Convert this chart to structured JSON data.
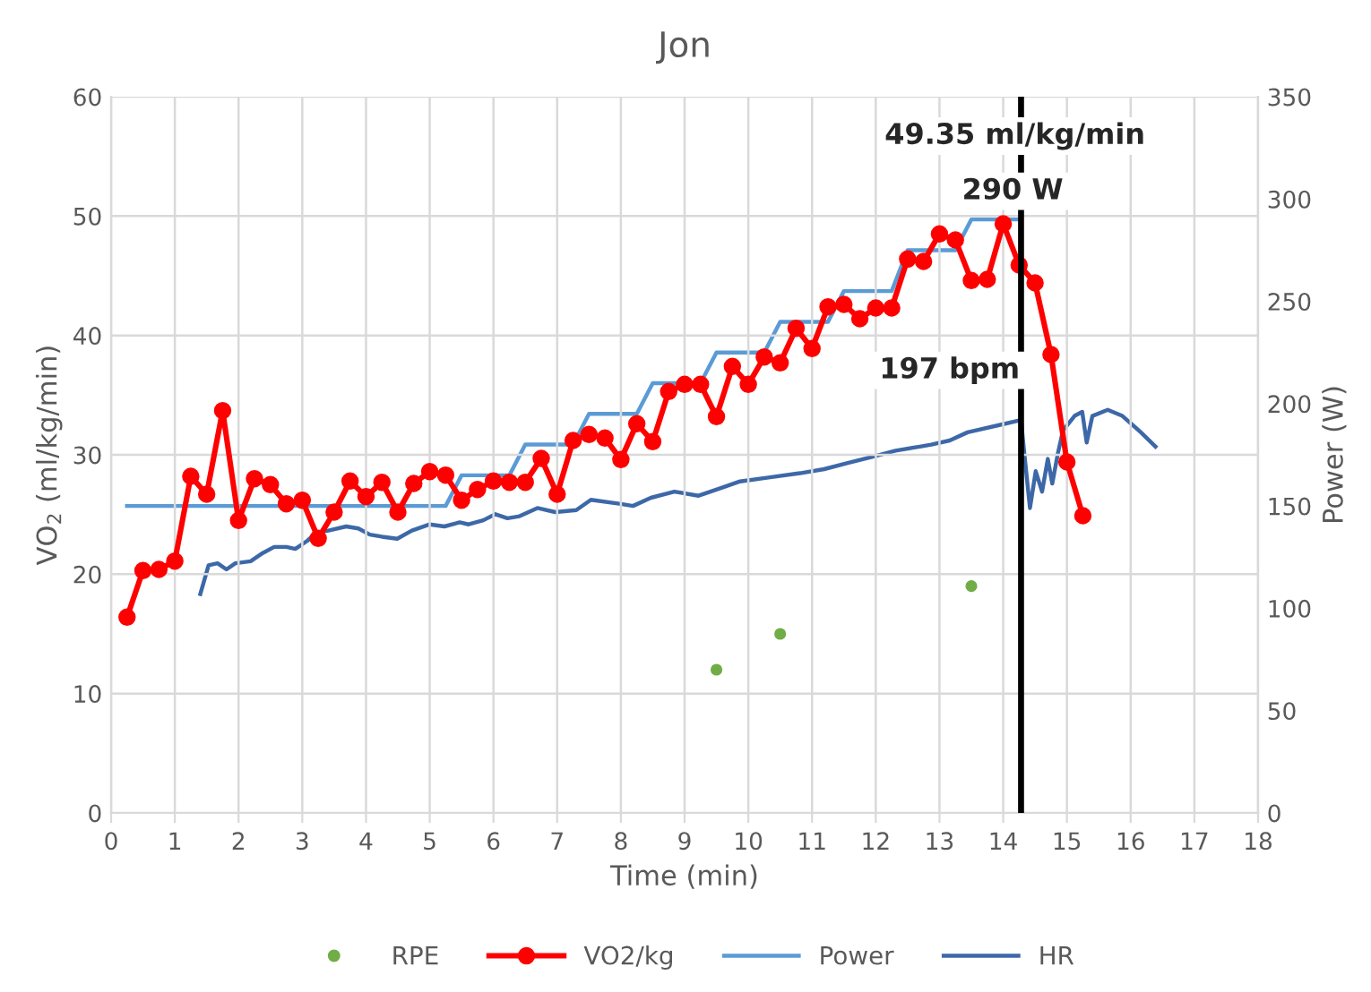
{
  "chart_data": {
    "type": "line",
    "title": "Jon",
    "xlabel": "Time (min)",
    "ylabel": "VO$_{2}$ (ml/kg/min)",
    "y2label": "Power (W)",
    "xlim": [
      0,
      18
    ],
    "xticks": [
      0,
      1,
      2,
      3,
      4,
      5,
      6,
      7,
      8,
      9,
      10,
      11,
      12,
      13,
      14,
      15,
      16,
      17,
      18
    ],
    "ylim": [
      0,
      60
    ],
    "yticks": [
      0,
      10,
      20,
      30,
      40,
      50,
      60
    ],
    "y2lim": [
      0,
      350
    ],
    "y2ticks": [
      0,
      50,
      100,
      150,
      200,
      250,
      300,
      350
    ],
    "grid": true,
    "legend": "bottom",
    "series": [
      {
        "name": "RPE",
        "type": "scatter",
        "color": "#70ad47",
        "marker": "circle",
        "x": [
          9.5,
          10.5,
          13.5
        ],
        "values": [
          12,
          15,
          19
        ]
      },
      {
        "name": "VO2/kg",
        "color": "#ff0000",
        "marker": "circle",
        "x": [
          0.25,
          0.5,
          0.75,
          1.0,
          1.25,
          1.5,
          1.75,
          2.0,
          2.25,
          2.5,
          2.75,
          3.0,
          3.25,
          3.5,
          3.75,
          4.0,
          4.25,
          4.5,
          4.75,
          5.0,
          5.25,
          5.5,
          5.75,
          6.0,
          6.25,
          6.5,
          6.75,
          7.0,
          7.25,
          7.5,
          7.75,
          8.0,
          8.25,
          8.5,
          8.75,
          9.0,
          9.25,
          9.5,
          9.75,
          10.0,
          10.25,
          10.5,
          10.75,
          11.0,
          11.25,
          11.5,
          11.75,
          12.0,
          12.25,
          12.5,
          12.75,
          13.0,
          13.25,
          13.5,
          13.75,
          14.0,
          14.25,
          14.5,
          14.75,
          15.0,
          15.25
        ],
        "values": [
          16.4,
          20.3,
          20.4,
          21.1,
          28.2,
          26.7,
          33.7,
          24.5,
          28.0,
          27.5,
          25.9,
          26.2,
          23.0,
          25.2,
          27.8,
          26.5,
          27.7,
          25.2,
          27.6,
          28.6,
          28.3,
          26.2,
          27.1,
          27.8,
          27.7,
          27.7,
          29.7,
          26.7,
          31.2,
          31.7,
          31.4,
          29.6,
          32.6,
          31.1,
          35.3,
          35.9,
          35.9,
          33.2,
          37.4,
          35.9,
          38.2,
          37.7,
          40.6,
          38.9,
          42.4,
          42.6,
          41.4,
          42.3,
          42.3,
          46.4,
          46.2,
          48.5,
          48.0,
          44.6,
          44.7,
          49.35,
          45.9,
          44.4,
          38.4,
          29.4,
          24.9
        ]
      },
      {
        "name": "Power",
        "axis": "y2",
        "color": "#5b9bd5",
        "marker": "none",
        "x": [
          0.25,
          5.25,
          5.5,
          6.25,
          6.5,
          7.25,
          7.5,
          8.25,
          8.5,
          9.25,
          9.5,
          10.25,
          10.5,
          11.25,
          11.5,
          12.25,
          12.5,
          13.25,
          13.5,
          14.25
        ],
        "values": [
          150,
          150,
          165,
          165,
          180,
          180,
          195,
          195,
          210,
          210,
          225,
          225,
          240,
          240,
          255,
          255,
          275,
          275,
          290,
          290
        ]
      },
      {
        "name": "HR",
        "axis": "y2",
        "color": "#3d68a8",
        "marker": "none",
        "x": [
          1.4,
          1.53,
          1.67,
          1.81,
          1.95,
          2.19,
          2.38,
          2.56,
          2.75,
          2.89,
          3.08,
          3.22,
          3.41,
          3.69,
          3.88,
          4.06,
          4.25,
          4.49,
          4.72,
          5.0,
          5.23,
          5.47,
          5.61,
          5.84,
          6.03,
          6.22,
          6.41,
          6.69,
          6.97,
          7.3,
          7.53,
          8.0,
          8.19,
          8.47,
          8.84,
          9.22,
          9.59,
          9.87,
          10.34,
          10.81,
          11.19,
          11.56,
          11.94,
          12.31,
          12.69,
          12.87,
          13.16,
          13.44,
          14.0,
          14.28,
          14.33,
          14.42,
          14.51,
          14.61,
          14.7,
          14.77,
          14.86,
          14.94,
          15.12,
          15.24,
          15.31,
          15.4,
          15.64,
          15.87,
          16.16,
          16.39
        ],
        "values": [
          107,
          121,
          122,
          119,
          122,
          123,
          127,
          130,
          130,
          129,
          133,
          137,
          138,
          140,
          139,
          136,
          135,
          134,
          138,
          141,
          140,
          142,
          141,
          143,
          146,
          144,
          145,
          149,
          147,
          148,
          153,
          151,
          150,
          154,
          157,
          155,
          159,
          162,
          164,
          166,
          168,
          171,
          174,
          177,
          179,
          180,
          182,
          186,
          190,
          192,
          176,
          149,
          167,
          157,
          173,
          161,
          176,
          187,
          194,
          196,
          181,
          194,
          197,
          194,
          186,
          179
        ]
      }
    ],
    "ref_lines": [
      {
        "axis": "x",
        "value": 14.28,
        "color": "#000000"
      }
    ],
    "annotations": [
      "49.35 ml/kg/min",
      "290 W",
      "197 bpm"
    ]
  }
}
